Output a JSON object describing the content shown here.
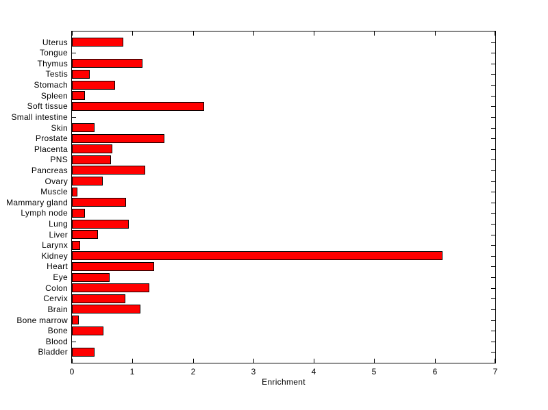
{
  "window": {
    "background": "#ffffff"
  },
  "chart_data": {
    "type": "bar",
    "orientation": "horizontal",
    "title": "",
    "xlabel": "Enrichment",
    "ylabel": "",
    "xlim": [
      0,
      7
    ],
    "xticks": [
      0,
      1,
      2,
      3,
      4,
      5,
      6,
      7
    ],
    "grid": false,
    "legend_position": "none",
    "bar_color": "#ff0000",
    "bar_edge_color": "#000000",
    "axis_color": "#000000",
    "category_order": "top_to_bottom",
    "categories": [
      "Uterus",
      "Tongue",
      "Thymus",
      "Testis",
      "Stomach",
      "Spleen",
      "Soft tissue",
      "Small intestine",
      "Skin",
      "Prostate",
      "Placenta",
      "PNS",
      "Pancreas",
      "Ovary",
      "Muscle",
      "Mammary gland",
      "Lymph node",
      "Lung",
      "Liver",
      "Larynx",
      "Kidney",
      "Heart",
      "Eye",
      "Colon",
      "Cervix",
      "Brain",
      "Bone marrow",
      "Bone",
      "Blood",
      "Bladder"
    ],
    "values": [
      0.85,
      0,
      1.17,
      0.3,
      0.71,
      0.22,
      2.19,
      0,
      0.37,
      1.53,
      0.67,
      0.64,
      1.21,
      0.51,
      0.09,
      0.89,
      0.22,
      0.94,
      0.43,
      0.14,
      6.13,
      1.36,
      0.62,
      1.28,
      0.88,
      1.13,
      0.11,
      0.52,
      0,
      0.37
    ]
  }
}
